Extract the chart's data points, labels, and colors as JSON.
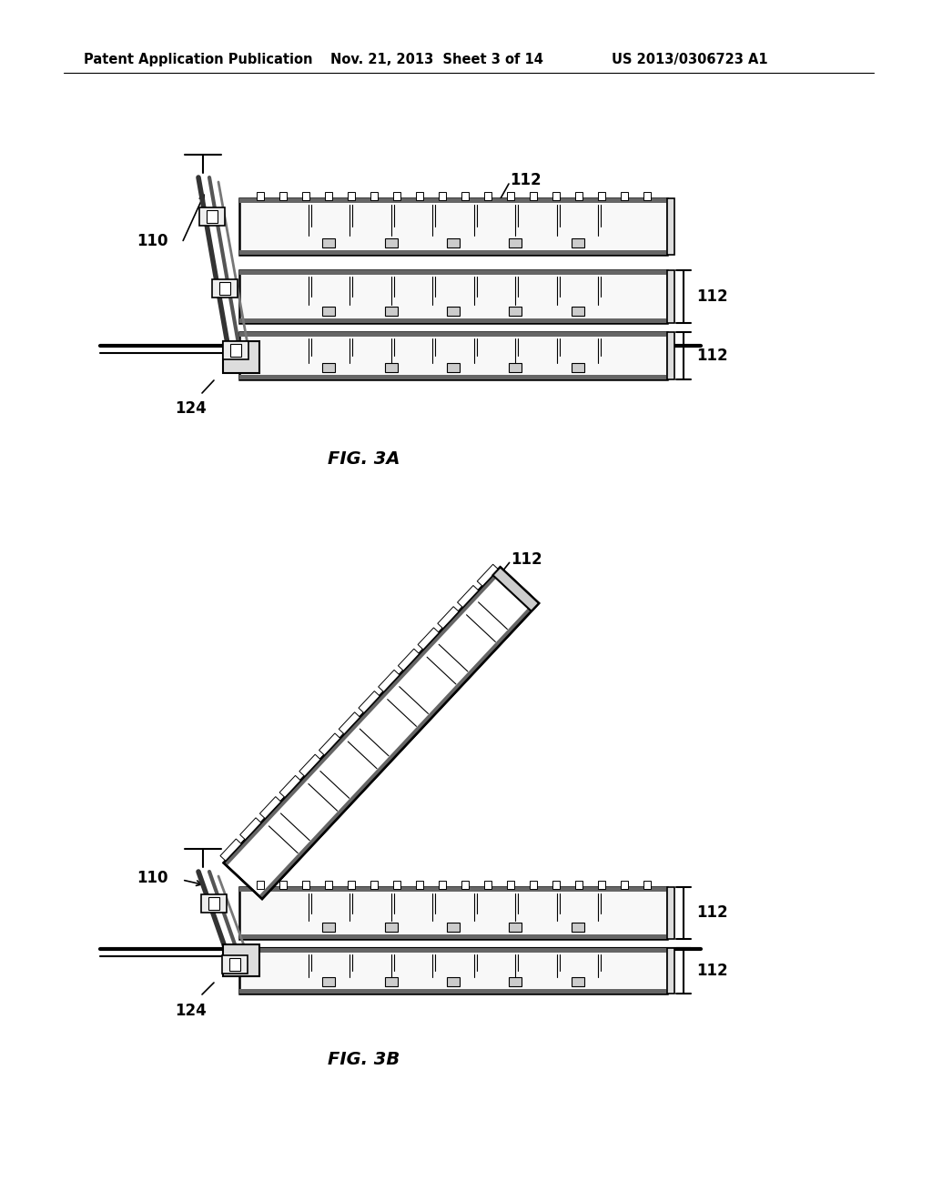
{
  "background_color": "#ffffff",
  "line_color": "#000000",
  "header_left": "Patent Application Publication",
  "header_center": "Nov. 21, 2013  Sheet 3 of 14",
  "header_right": "US 2013/0306723 A1",
  "fig3a_label": "FIG. 3A",
  "fig3b_label": "FIG. 3B",
  "label_110_a": "110",
  "label_112_a_top": "112",
  "label_112_a_mid": "112",
  "label_112_a_bot": "112",
  "label_124_a": "124",
  "label_110_b": "110",
  "label_112_b_top": "112",
  "label_112_b_mid": "112",
  "label_112_b_bot": "112",
  "label_124_b": "124"
}
